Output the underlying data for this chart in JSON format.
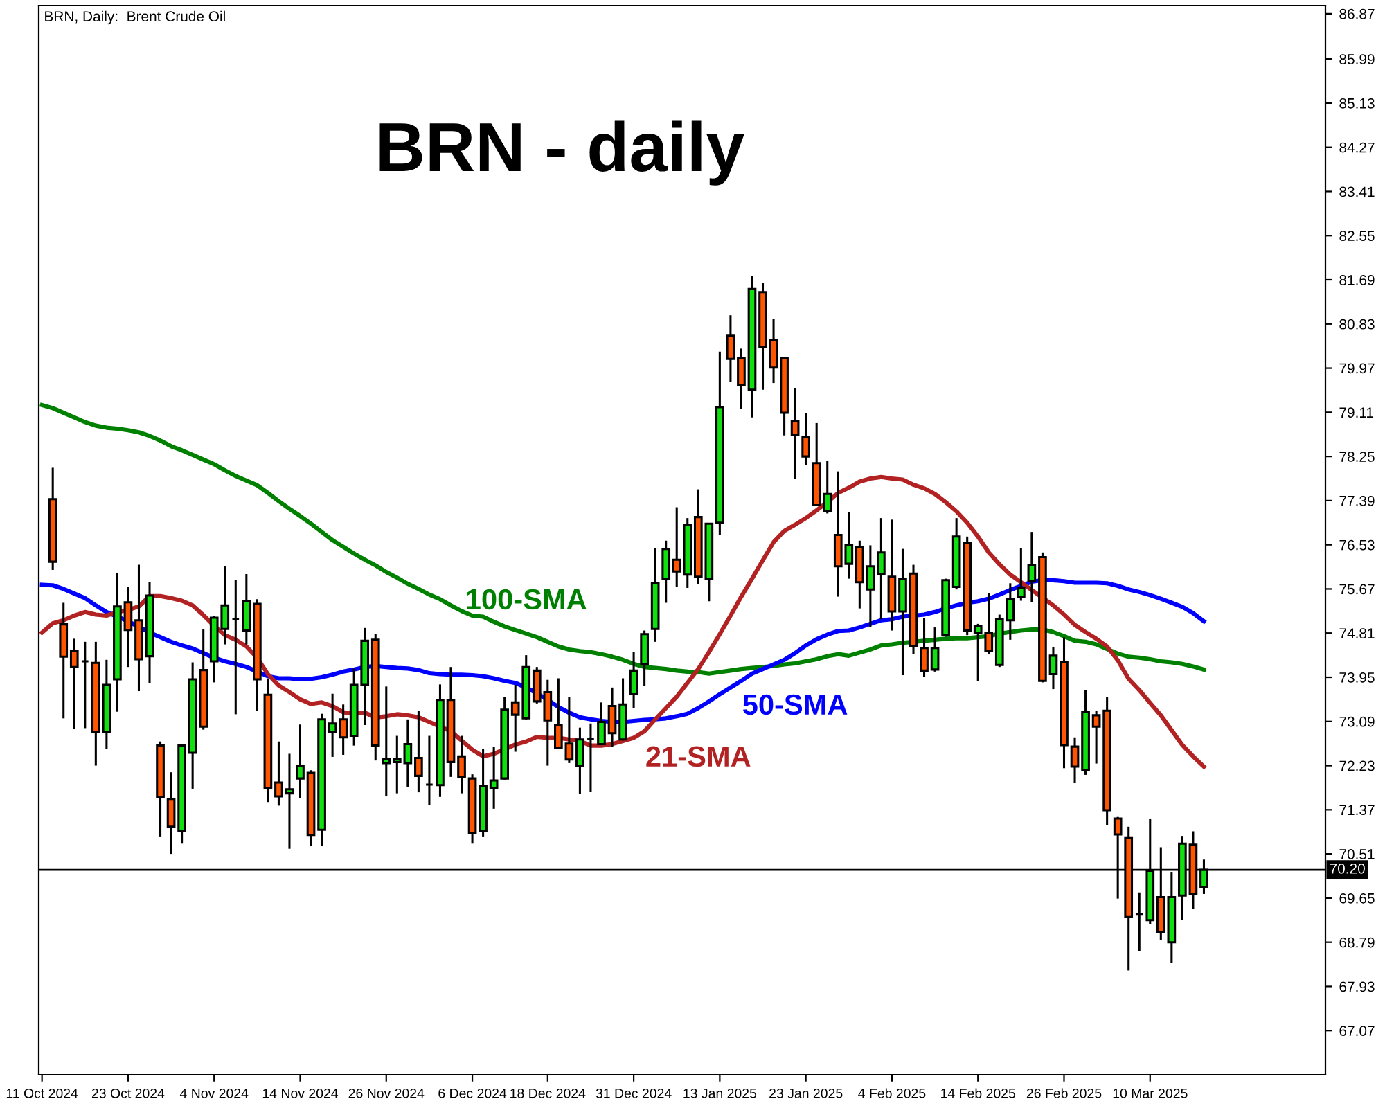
{
  "chart_data": {
    "type": "candlestick",
    "title": "BRN - daily",
    "annotations": [
      "BRN, Daily:  Brent Crude Oil"
    ],
    "categories": [
      "11 Oct 2024",
      null,
      null,
      null,
      null,
      null,
      null,
      null,
      "23 Oct 2024",
      null,
      null,
      null,
      null,
      null,
      null,
      null,
      "4 Nov 2024",
      null,
      null,
      null,
      null,
      null,
      null,
      null,
      "14 Nov 2024",
      null,
      null,
      null,
      null,
      null,
      null,
      null,
      "26 Nov 2024",
      null,
      null,
      null,
      null,
      null,
      null,
      null,
      "6 Dec 2024",
      null,
      null,
      null,
      null,
      null,
      null,
      "18 Dec 2024",
      null,
      null,
      null,
      null,
      null,
      null,
      null,
      "31 Dec 2024",
      null,
      null,
      null,
      null,
      null,
      null,
      null,
      "13 Jan 2025",
      null,
      null,
      null,
      null,
      null,
      null,
      null,
      "23 Jan 2025",
      null,
      null,
      null,
      null,
      null,
      null,
      null,
      "4 Feb 2025",
      null,
      null,
      null,
      null,
      null,
      null,
      null,
      "14 Feb 2025",
      null,
      null,
      null,
      null,
      null,
      null,
      null,
      "26 Feb 2025",
      null,
      null,
      null,
      null,
      null,
      null,
      null,
      "10 Mar 2025",
      null,
      null,
      null,
      null,
      null
    ],
    "ohlc": [
      null,
      [
        77.42,
        78.03,
        76.04,
        76.2
      ],
      [
        74.98,
        75.4,
        73.15,
        74.35
      ],
      [
        74.47,
        74.7,
        72.94,
        74.15
      ],
      [
        74.26,
        74.64,
        72.96,
        74.26
      ],
      [
        74.23,
        74.64,
        72.23,
        72.89
      ],
      [
        72.89,
        74.29,
        72.55,
        73.8
      ],
      [
        73.91,
        75.98,
        73.28,
        75.33
      ],
      [
        75.41,
        75.71,
        74.15,
        74.87
      ],
      [
        75.06,
        76.14,
        73.68,
        74.3
      ],
      [
        74.36,
        75.8,
        73.84,
        75.54
      ],
      [
        72.62,
        72.7,
        70.85,
        71.62
      ],
      [
        71.58,
        72.1,
        70.51,
        71.04
      ],
      [
        70.96,
        72.62,
        70.71,
        72.62
      ],
      [
        72.48,
        74.24,
        71.78,
        73.91
      ],
      [
        74.09,
        74.88,
        72.93,
        72.99
      ],
      [
        74.26,
        75.15,
        73.85,
        75.11
      ],
      [
        74.89,
        76.11,
        74.59,
        75.35
      ],
      [
        75.08,
        75.84,
        73.23,
        75.08
      ],
      [
        74.86,
        75.96,
        74.59,
        75.44
      ],
      [
        75.38,
        75.47,
        73.3,
        73.91
      ],
      [
        73.61,
        73.91,
        71.52,
        71.79
      ],
      [
        71.9,
        72.7,
        71.45,
        71.63
      ],
      [
        71.69,
        72.46,
        70.61,
        71.77
      ],
      [
        71.98,
        73.03,
        71.59,
        72.22
      ],
      [
        72.09,
        72.14,
        70.66,
        70.88
      ],
      [
        70.98,
        73.24,
        70.66,
        73.13
      ],
      [
        72.89,
        73.63,
        72.4,
        73.05
      ],
      [
        73.13,
        73.42,
        72.44,
        72.78
      ],
      [
        72.81,
        74.12,
        72.62,
        73.8
      ],
      [
        73.8,
        74.91,
        73.02,
        74.66
      ],
      [
        74.68,
        74.79,
        72.33,
        72.62
      ],
      [
        72.28,
        73.77,
        71.63,
        72.36
      ],
      [
        72.3,
        72.81,
        71.69,
        72.36
      ],
      [
        72.28,
        73.13,
        71.82,
        72.65
      ],
      [
        72.38,
        73.29,
        71.71,
        72.03
      ],
      [
        71.86,
        72.81,
        71.46,
        71.86
      ],
      [
        71.85,
        73.81,
        71.62,
        73.51
      ],
      [
        73.51,
        74.15,
        72.01,
        72.3
      ],
      [
        72.41,
        72.81,
        71.69,
        72.01
      ],
      [
        71.98,
        72.06,
        70.71,
        70.91
      ],
      [
        70.96,
        72.55,
        70.85,
        71.83
      ],
      [
        71.79,
        72.59,
        71.39,
        71.94
      ],
      [
        71.98,
        73.57,
        71.96,
        73.32
      ],
      [
        73.46,
        73.8,
        72.5,
        73.22
      ],
      [
        73.15,
        74.38,
        73.13,
        74.15
      ],
      [
        74.08,
        74.15,
        73.44,
        73.48
      ],
      [
        73.66,
        73.9,
        72.23,
        73.11
      ],
      [
        73.02,
        73.93,
        72.55,
        72.57
      ],
      [
        72.66,
        73.57,
        72.28,
        72.35
      ],
      [
        72.22,
        72.97,
        71.68,
        72.74
      ],
      [
        72.75,
        73.05,
        71.72,
        72.75
      ],
      [
        72.65,
        73.46,
        72.63,
        73.08
      ],
      [
        73.39,
        73.75,
        72.59,
        72.86
      ],
      [
        72.74,
        73.93,
        72.72,
        73.42
      ],
      [
        73.62,
        74.44,
        73.35,
        74.08
      ],
      [
        74.2,
        74.86,
        73.78,
        74.79
      ],
      [
        74.89,
        76.47,
        74.64,
        75.78
      ],
      [
        75.86,
        76.61,
        75.4,
        76.45
      ],
      [
        76.24,
        77.26,
        75.71,
        76.01
      ],
      [
        75.95,
        77.05,
        75.69,
        76.91
      ],
      [
        77.07,
        77.61,
        75.76,
        75.91
      ],
      [
        75.86,
        76.94,
        75.43,
        76.94
      ],
      [
        76.96,
        80.29,
        76.72,
        79.21
      ],
      [
        80.6,
        81.0,
        79.7,
        80.15
      ],
      [
        80.17,
        80.35,
        79.17,
        79.64
      ],
      [
        79.55,
        81.76,
        79.01,
        81.51
      ],
      [
        81.45,
        81.63,
        79.55,
        80.38
      ],
      [
        80.51,
        80.93,
        79.68,
        79.98
      ],
      [
        80.17,
        80.19,
        78.66,
        79.1
      ],
      [
        78.94,
        79.58,
        77.81,
        78.67
      ],
      [
        78.63,
        79.09,
        78.08,
        78.25
      ],
      [
        78.12,
        78.9,
        77.3,
        77.3
      ],
      [
        77.19,
        78.17,
        77.14,
        77.52
      ],
      [
        76.72,
        77.96,
        75.52,
        76.11
      ],
      [
        76.16,
        77.16,
        75.87,
        76.52
      ],
      [
        76.48,
        76.61,
        75.29,
        75.8
      ],
      [
        75.66,
        76.52,
        74.93,
        76.11
      ],
      [
        75.96,
        77.05,
        75.08,
        76.38
      ],
      [
        75.91,
        77.02,
        74.86,
        75.23
      ],
      [
        75.23,
        76.45,
        73.99,
        75.86
      ],
      [
        75.97,
        76.14,
        74.4,
        74.55
      ],
      [
        74.52,
        75.11,
        73.95,
        74.08
      ],
      [
        74.1,
        74.92,
        74.06,
        74.52
      ],
      [
        74.77,
        75.87,
        74.74,
        75.84
      ],
      [
        75.71,
        77.05,
        75.66,
        76.69
      ],
      [
        76.56,
        76.69,
        74.77,
        74.86
      ],
      [
        74.82,
        74.99,
        73.88,
        74.95
      ],
      [
        74.82,
        75.59,
        74.4,
        74.46
      ],
      [
        74.19,
        75.17,
        74.15,
        75.08
      ],
      [
        75.06,
        75.78,
        74.68,
        75.48
      ],
      [
        75.51,
        76.47,
        75.44,
        75.69
      ],
      [
        75.82,
        76.78,
        75.41,
        76.13
      ],
      [
        76.29,
        76.38,
        73.85,
        73.88
      ],
      [
        74.01,
        74.53,
        73.72,
        74.37
      ],
      [
        74.25,
        74.73,
        72.18,
        72.63
      ],
      [
        72.6,
        72.78,
        71.9,
        72.21
      ],
      [
        72.14,
        73.7,
        72.05,
        73.27
      ],
      [
        73.21,
        73.3,
        72.27,
        72.99
      ],
      [
        73.3,
        73.57,
        71.07,
        71.36
      ],
      [
        71.2,
        71.23,
        69.64,
        70.89
      ],
      [
        70.83,
        71.04,
        68.24,
        69.28
      ],
      [
        69.33,
        69.76,
        68.62,
        69.33
      ],
      [
        69.22,
        71.2,
        69.15,
        70.18
      ],
      [
        69.67,
        70.64,
        68.84,
        68.99
      ],
      [
        68.79,
        70.16,
        68.39,
        69.67
      ],
      [
        69.7,
        70.86,
        69.22,
        70.71
      ],
      [
        70.69,
        70.95,
        69.44,
        69.73
      ],
      [
        69.86,
        70.4,
        69.73,
        70.2
      ]
    ],
    "colors": [
      null,
      "#ff5500",
      "#ff5500",
      "#ff5500",
      "#000000",
      "#ff5500",
      "#10e010",
      "#10e010",
      "#ff5500",
      "#ff5500",
      "#10e010",
      "#ff5500",
      "#ff5500",
      "#10e010",
      "#10e010",
      "#ff5500",
      "#10e010",
      "#10e010",
      "#000000",
      "#10e010",
      "#ff5500",
      "#ff5500",
      "#ff5500",
      "#10e010",
      "#10e010",
      "#ff5500",
      "#10e010",
      "#10e010",
      "#ff5500",
      "#10e010",
      "#10e010",
      "#ff5500",
      "#10e010",
      "#10e010",
      "#10e010",
      "#ff5500",
      "#000000",
      "#10e010",
      "#ff5500",
      "#ff5500",
      "#ff5500",
      "#10e010",
      "#10e010",
      "#10e010",
      "#ff5500",
      "#10e010",
      "#ff5500",
      "#ff5500",
      "#ff5500",
      "#ff5500",
      "#10e010",
      "#000000",
      "#10e010",
      "#ff5500",
      "#10e010",
      "#10e010",
      "#10e010",
      "#10e010",
      "#10e010",
      "#ff5500",
      "#10e010",
      "#ff5500",
      "#10e010",
      "#10e010",
      "#ff5500",
      "#ff5500",
      "#10e010",
      "#ff5500",
      "#ff5500",
      "#ff5500",
      "#ff5500",
      "#ff5500",
      "#ff5500",
      "#10e010",
      "#ff5500",
      "#10e010",
      "#ff5500",
      "#10e010",
      "#10e010",
      "#ff5500",
      "#10e010",
      "#ff5500",
      "#ff5500",
      "#10e010",
      "#10e010",
      "#10e010",
      "#ff5500",
      "#10e010",
      "#ff5500",
      "#10e010",
      "#10e010",
      "#10e010",
      "#10e010",
      "#ff5500",
      "#10e010",
      "#ff5500",
      "#ff5500",
      "#10e010",
      "#ff5500",
      "#ff5500",
      "#ff5500",
      "#ff5500",
      "#000000",
      "#10e010",
      "#ff5500",
      "#10e010",
      "#10e010",
      "#ff5500",
      "#10e010"
    ],
    "series": [
      {
        "name": "100-SMA",
        "type": "line",
        "color": "#008000",
        "values": [
          79.25,
          79.19,
          79.1,
          79.01,
          78.92,
          78.85,
          78.81,
          78.79,
          78.76,
          78.72,
          78.65,
          78.56,
          78.45,
          78.37,
          78.28,
          78.19,
          78.1,
          77.98,
          77.87,
          77.78,
          77.69,
          77.54,
          77.38,
          77.23,
          77.09,
          76.94,
          76.78,
          76.62,
          76.49,
          76.36,
          76.24,
          76.13,
          76.0,
          75.89,
          75.77,
          75.67,
          75.56,
          75.47,
          75.35,
          75.24,
          75.15,
          75.13,
          75.03,
          74.94,
          74.87,
          74.8,
          74.73,
          74.64,
          74.55,
          74.49,
          74.46,
          74.44,
          74.4,
          74.35,
          74.29,
          74.21,
          74.15,
          74.13,
          74.11,
          74.08,
          74.06,
          74.05,
          74.02,
          74.05,
          74.08,
          74.11,
          74.13,
          74.15,
          74.17,
          74.2,
          74.22,
          74.26,
          74.3,
          74.36,
          74.4,
          74.37,
          74.43,
          74.49,
          74.57,
          74.59,
          74.62,
          74.64,
          74.66,
          74.68,
          74.7,
          74.71,
          74.71,
          74.73,
          74.75,
          74.8,
          74.83,
          74.86,
          74.88,
          74.88,
          74.83,
          74.75,
          74.66,
          74.64,
          74.59,
          74.5,
          74.41,
          74.35,
          74.33,
          74.3,
          74.26,
          74.24,
          74.21,
          74.16,
          74.1
        ]
      },
      {
        "name": "50-SMA",
        "type": "line",
        "color": "#0000ff",
        "values": [
          75.75,
          75.74,
          75.67,
          75.58,
          75.49,
          75.35,
          75.22,
          75.13,
          75.04,
          74.93,
          74.82,
          74.73,
          74.64,
          74.57,
          74.51,
          74.42,
          74.33,
          74.26,
          74.21,
          74.15,
          74.06,
          73.97,
          73.93,
          73.93,
          73.91,
          73.92,
          73.95,
          74.0,
          74.06,
          74.1,
          74.15,
          74.17,
          74.15,
          74.13,
          74.12,
          74.09,
          74.03,
          74.01,
          74.0,
          74.0,
          73.99,
          73.97,
          73.93,
          73.88,
          73.84,
          73.75,
          73.64,
          73.51,
          73.37,
          73.26,
          73.17,
          73.13,
          73.1,
          73.08,
          73.08,
          73.1,
          73.12,
          73.13,
          73.15,
          73.19,
          73.24,
          73.35,
          73.48,
          73.62,
          73.75,
          73.88,
          74.02,
          74.11,
          74.2,
          74.29,
          74.42,
          74.57,
          74.69,
          74.78,
          74.85,
          74.86,
          74.92,
          74.99,
          75.06,
          75.08,
          75.13,
          75.15,
          75.17,
          75.22,
          75.29,
          75.35,
          75.4,
          75.43,
          75.48,
          75.56,
          75.65,
          75.73,
          75.81,
          75.84,
          75.84,
          75.82,
          75.79,
          75.79,
          75.79,
          75.78,
          75.73,
          75.66,
          75.61,
          75.55,
          75.48,
          75.4,
          75.32,
          75.2,
          75.04
        ]
      },
      {
        "name": "21-SMA",
        "type": "line",
        "color": "#b22222",
        "values": [
          74.82,
          75.0,
          75.06,
          75.15,
          75.22,
          75.17,
          75.15,
          75.22,
          75.26,
          75.33,
          75.53,
          75.53,
          75.49,
          75.44,
          75.35,
          75.16,
          74.95,
          74.77,
          74.68,
          74.55,
          74.33,
          74.01,
          73.79,
          73.66,
          73.52,
          73.43,
          73.46,
          73.39,
          73.27,
          73.24,
          73.26,
          73.17,
          73.19,
          73.23,
          73.21,
          73.17,
          73.08,
          72.99,
          72.9,
          72.72,
          72.54,
          72.41,
          72.46,
          72.55,
          72.64,
          72.7,
          72.79,
          72.77,
          72.77,
          72.74,
          72.71,
          72.62,
          72.62,
          72.65,
          72.71,
          72.77,
          72.9,
          73.13,
          73.35,
          73.57,
          73.84,
          74.11,
          74.44,
          74.79,
          75.15,
          75.52,
          75.87,
          76.23,
          76.58,
          76.8,
          76.92,
          77.05,
          77.2,
          77.36,
          77.54,
          77.64,
          77.76,
          77.82,
          77.85,
          77.82,
          77.8,
          77.7,
          77.63,
          77.52,
          77.36,
          77.18,
          76.96,
          76.69,
          76.38,
          76.15,
          75.95,
          75.8,
          75.65,
          75.5,
          75.35,
          75.17,
          74.97,
          74.83,
          74.7,
          74.55,
          74.28,
          73.92,
          73.7,
          73.45,
          73.21,
          72.92,
          72.63,
          72.41,
          72.21
        ]
      }
    ],
    "ylim": [
      66.21,
      87.03
    ],
    "yticks": [
      86.87,
      85.99,
      85.13,
      84.27,
      83.41,
      82.55,
      81.69,
      80.83,
      79.97,
      79.11,
      78.25,
      77.39,
      76.53,
      75.67,
      74.81,
      73.95,
      73.09,
      72.23,
      71.37,
      70.51,
      69.65,
      68.79,
      67.93,
      67.07
    ],
    "ref_lines": [
      {
        "axis": "y",
        "value": 70.2,
        "label": "70.20",
        "color": "#000000"
      }
    ],
    "grid": false,
    "legend": false
  }
}
